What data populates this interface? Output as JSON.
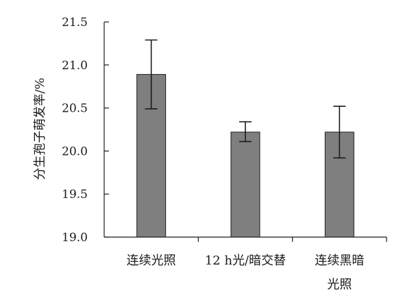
{
  "chart_data": {
    "type": "bar",
    "title": "",
    "xlabel": "",
    "ylabel": "分生孢子萌发率/%",
    "ylim": [
      19.0,
      21.5
    ],
    "yticks": [
      "19.0",
      "19.5",
      "20.0",
      "20.5",
      "21.0",
      "21.5"
    ],
    "categories": [
      {
        "line1": "连续光照",
        "line2": ""
      },
      {
        "line1": "12 h光/暗交替",
        "line2": ""
      },
      {
        "line1": "连续黑暗",
        "line2": "光照"
      }
    ],
    "values": [
      20.89,
      20.22,
      20.22
    ],
    "error_low": [
      20.49,
      20.11,
      19.92
    ],
    "error_high": [
      21.29,
      20.34,
      20.52
    ],
    "grid": false,
    "bar_color": "#7f7f7f"
  }
}
